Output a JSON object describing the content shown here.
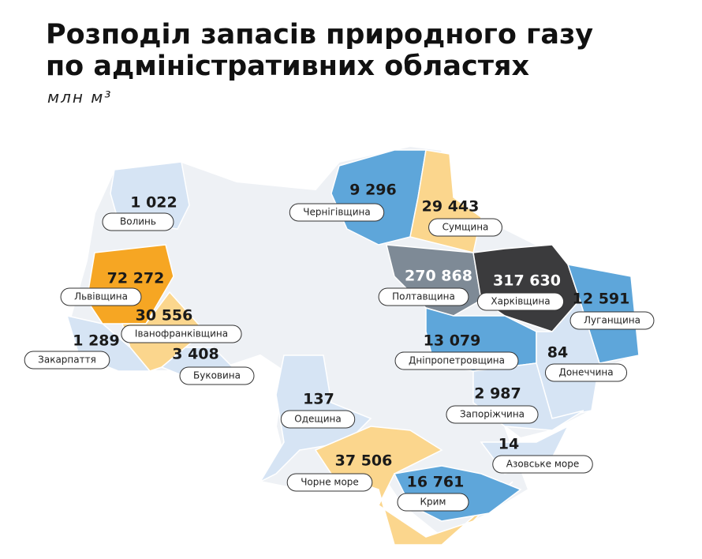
{
  "title_lines": [
    "Розподіл запасів природного газу",
    "по адміністративних областях"
  ],
  "subtitle": "млн м³",
  "regions": [
    {
      "name": "Волинь",
      "value": "1 022",
      "color": "#d6e4f4"
    },
    {
      "name": "Львівщина",
      "value": "72 272",
      "color": "#f6a623"
    },
    {
      "name": "Іванофранківщина",
      "value": "30 556",
      "color": "#fbd68d"
    },
    {
      "name": "Закарпаття",
      "value": "1 289",
      "color": "#d6e4f4"
    },
    {
      "name": "Буковина",
      "value": "3 408",
      "color": "#d6e4f4"
    },
    {
      "name": "Чернігівщина",
      "value": "9 296",
      "color": "#5ea6da"
    },
    {
      "name": "Сумщина",
      "value": "29 443",
      "color": "#fbd68d"
    },
    {
      "name": "Полтавщина",
      "value": "270 868",
      "color": "#7e8a96"
    },
    {
      "name": "Харківщина",
      "value": "317 630",
      "color": "#3b3b3d"
    },
    {
      "name": "Луганщина",
      "value": "12 591",
      "color": "#5ea6da"
    },
    {
      "name": "Дніпропетровщина",
      "value": "13 079",
      "color": "#5ea6da"
    },
    {
      "name": "Донеччина",
      "value": "84",
      "color": "#d6e4f4"
    },
    {
      "name": "Запоріжчина",
      "value": "2 987",
      "color": "#d6e4f4"
    },
    {
      "name": "Одещина",
      "value": "137",
      "color": "#d6e4f4"
    },
    {
      "name": "Чорне море",
      "value": "37 506",
      "color": "#fbd68d"
    },
    {
      "name": "Крим",
      "value": "16 761",
      "color": "#5ea6da"
    },
    {
      "name": "Азовське море",
      "value": "14",
      "color": "#d6e4f4"
    }
  ]
}
